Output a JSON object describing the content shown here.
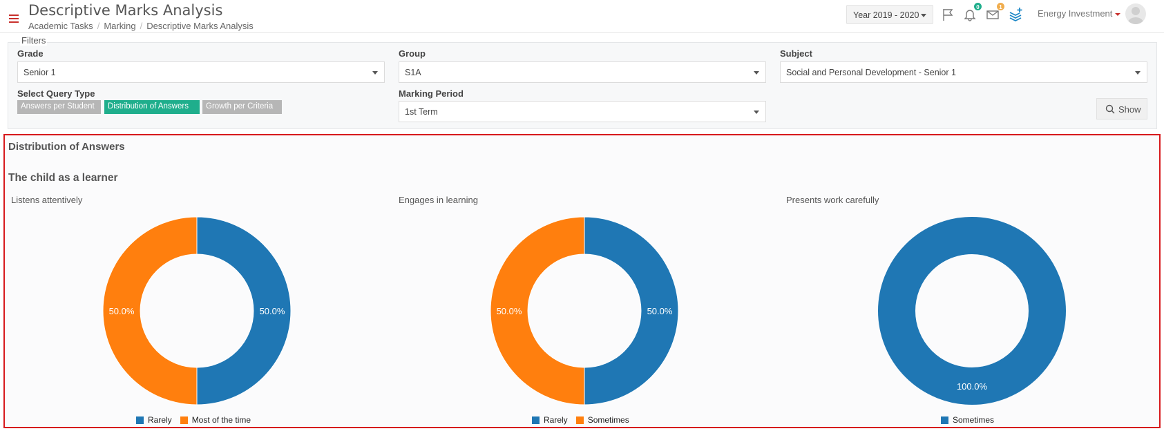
{
  "header": {
    "title": "Descriptive Marks Analysis",
    "breadcrumb": [
      "Academic Tasks",
      "Marking",
      "Descriptive Marks Analysis"
    ],
    "year": "Year 2019 - 2020",
    "notifications_count": "0",
    "messages_count": "1",
    "user_name": "Energy Investment"
  },
  "filters": {
    "legend": "Filters",
    "grade_label": "Grade",
    "grade_value": "Senior 1",
    "group_label": "Group",
    "group_value": "S1A",
    "subject_label": "Subject",
    "subject_value": "Social and Personal Development - Senior 1",
    "query_type_label": "Select Query Type",
    "query_types": [
      "Answers per Student",
      "Distribution of Answers",
      "Growth per Criteria"
    ],
    "active_query_type": "Distribution of Answers",
    "marking_period_label": "Marking Period",
    "marking_period_value": "1st Term",
    "show_label": "Show"
  },
  "results": {
    "title": "Distribution of Answers",
    "section_title": "The child as a learner"
  },
  "colors": {
    "blue": "#1f77b4",
    "orange": "#ff7f0e",
    "accent": "#1fae8c",
    "highlight_border": "#d7191c"
  },
  "chart_data": [
    {
      "type": "pie",
      "title": "Listens attentively",
      "categories": [
        "Rarely",
        "Most of the time"
      ],
      "values": [
        50.0,
        50.0
      ],
      "labels": [
        "50.0%",
        "50.0%"
      ],
      "colors": [
        "#1f77b4",
        "#ff7f0e"
      ],
      "legend": "bottom"
    },
    {
      "type": "pie",
      "title": "Engages in learning",
      "categories": [
        "Rarely",
        "Sometimes"
      ],
      "values": [
        50.0,
        50.0
      ],
      "labels": [
        "50.0%",
        "50.0%"
      ],
      "colors": [
        "#1f77b4",
        "#ff7f0e"
      ],
      "legend": "bottom"
    },
    {
      "type": "pie",
      "title": "Presents work carefully",
      "categories": [
        "Sometimes"
      ],
      "values": [
        100.0
      ],
      "labels": [
        "100.0%"
      ],
      "colors": [
        "#1f77b4"
      ],
      "legend": "bottom"
    }
  ]
}
